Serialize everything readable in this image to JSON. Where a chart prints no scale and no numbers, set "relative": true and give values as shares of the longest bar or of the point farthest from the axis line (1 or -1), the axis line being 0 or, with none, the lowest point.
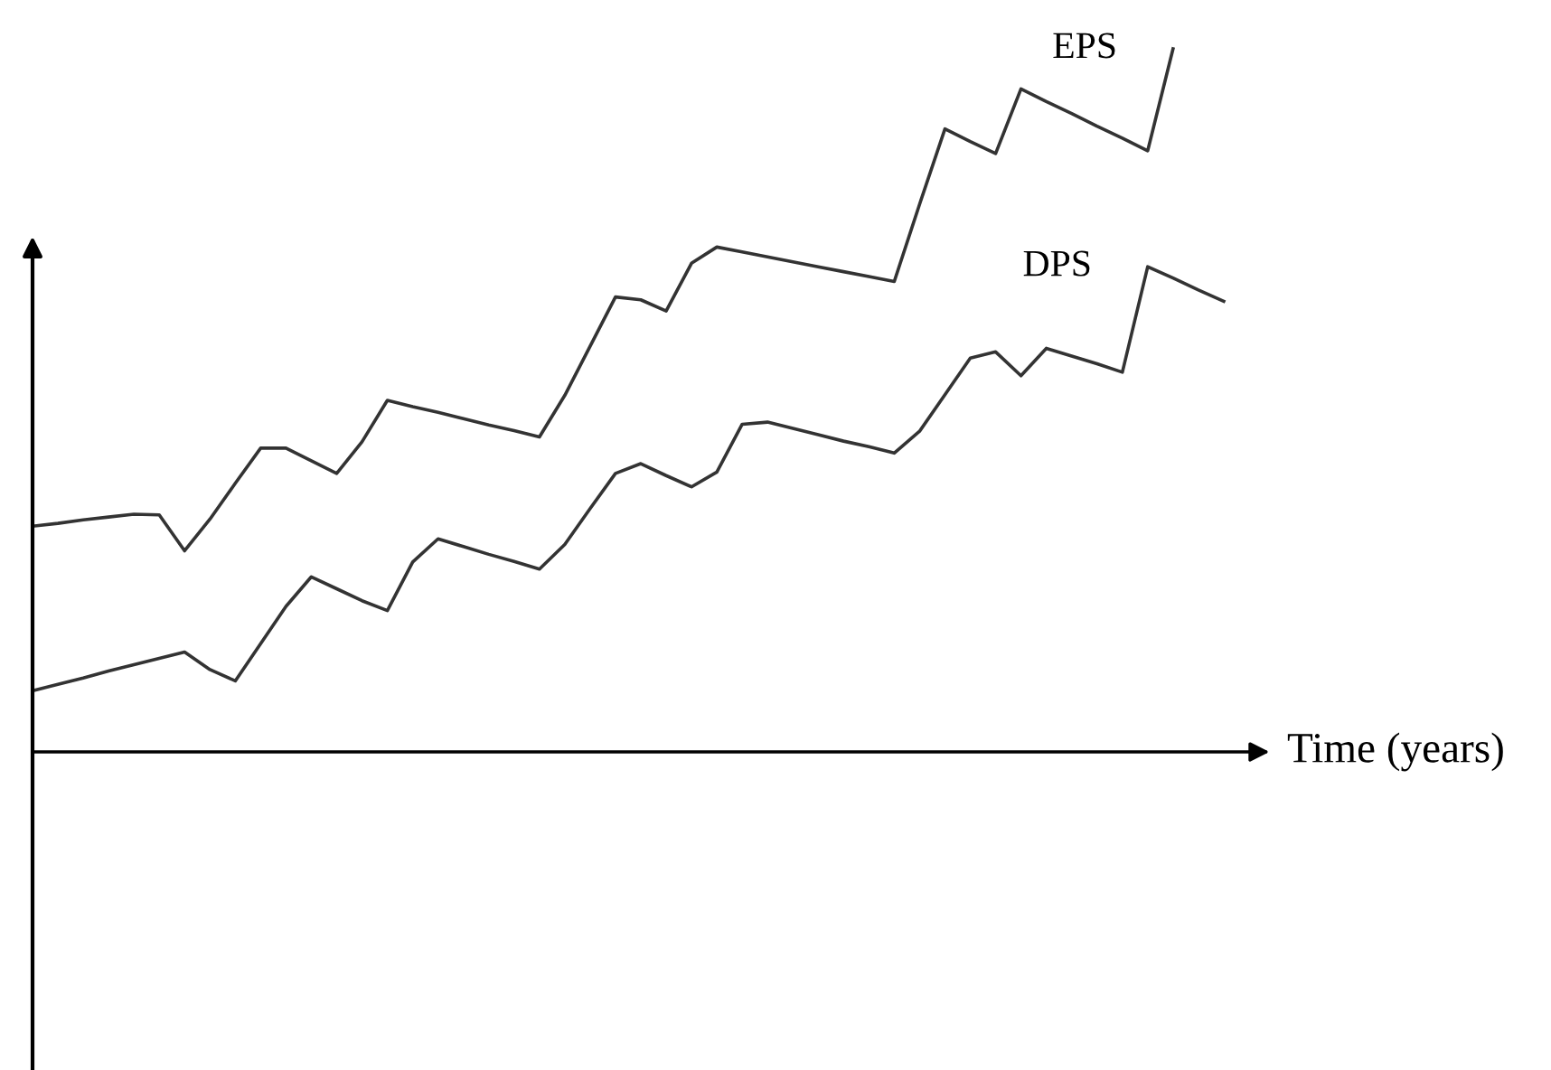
{
  "chart_data": {
    "type": "line",
    "relative": true,
    "xlabel": "Time (years)",
    "tick_labels": false,
    "legend": false,
    "marker": "none",
    "line_style": "solid",
    "categories": [
      null,
      null,
      null,
      null,
      null,
      null,
      null,
      null,
      null,
      null,
      null,
      null,
      null,
      null,
      null,
      null,
      null,
      null,
      null,
      null,
      null,
      null,
      null,
      null,
      null,
      null,
      null,
      null,
      null,
      null,
      null,
      null,
      null,
      null,
      null,
      null,
      null,
      null,
      null,
      null,
      null,
      null,
      null,
      null,
      null,
      null,
      null,
      null
    ],
    "series": [
      {
        "name": "EPS",
        "color": "#333333",
        "values": [
          0.321,
          0.325,
          0.33,
          0.334,
          0.338,
          0.337,
          0.286,
          0.331,
          0.382,
          0.432,
          0.432,
          0.414,
          0.396,
          0.441,
          0.5,
          0.491,
          0.483,
          0.474,
          0.465,
          0.457,
          0.448,
          0.507,
          0.577,
          0.647,
          0.643,
          0.627,
          0.695,
          0.718,
          0.711,
          0.704,
          0.697,
          0.69,
          0.683,
          0.676,
          0.669,
          0.779,
          0.886,
          0.868,
          0.851,
          0.943,
          0.925,
          0.908,
          0.89,
          0.873,
          0.855,
          1,
          null,
          null
        ]
      },
      {
        "name": "DPS",
        "color": "#333333",
        "values": [
          0.087,
          0.096,
          0.105,
          0.115,
          0.124,
          0.133,
          0.142,
          0.117,
          0.101,
          0.154,
          0.207,
          0.249,
          0.232,
          0.215,
          0.201,
          0.27,
          0.303,
          0.292,
          0.281,
          0.271,
          0.26,
          0.295,
          0.346,
          0.396,
          0.41,
          0.393,
          0.377,
          0.398,
          0.466,
          0.469,
          0.46,
          0.451,
          0.442,
          0.434,
          0.425,
          0.456,
          0.508,
          0.56,
          0.569,
          0.535,
          0.574,
          0.563,
          0.552,
          0.54,
          0.69,
          0.674,
          0.657,
          0.641
        ]
      }
    ]
  }
}
